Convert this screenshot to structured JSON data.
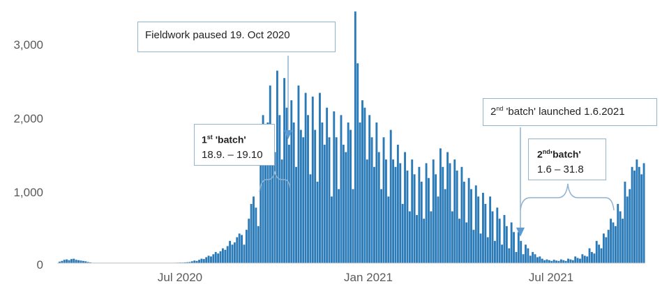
{
  "chart_data": {
    "type": "bar",
    "ylim": [
      0,
      3500
    ],
    "y_ticks": [
      {
        "value": 0,
        "label": "0"
      },
      {
        "value": 1000,
        "label": "1,000"
      },
      {
        "value": 2000,
        "label": "2,000"
      },
      {
        "value": 3000,
        "label": "3,000"
      }
    ],
    "x_ticks": [
      "Jul 2020",
      "Jan 2021",
      "Jul 2021"
    ],
    "bar_color": "#2a7ab8",
    "series": [
      {
        "values": [
          20,
          30,
          45,
          50,
          40,
          55,
          60,
          45,
          40,
          35,
          30,
          25,
          15,
          10,
          5,
          5,
          4,
          3,
          3,
          2,
          2,
          1,
          1,
          1,
          1,
          1,
          1,
          1,
          1,
          1,
          1,
          1,
          1,
          1,
          1,
          1,
          1,
          1,
          2,
          2,
          2,
          2,
          3,
          3,
          3,
          4,
          4,
          5,
          5,
          6,
          7,
          8,
          8,
          10,
          12,
          15,
          25,
          35,
          30,
          45,
          60,
          55,
          80,
          100,
          90,
          120,
          150,
          130,
          160,
          200,
          180,
          230,
          300,
          250,
          280,
          350,
          400,
          380,
          250,
          450,
          600,
          800,
          900,
          750,
          500,
          1500,
          2000,
          1700,
          1900,
          2400,
          1800,
          1500,
          2600,
          2000,
          1400,
          2500,
          2100,
          1600,
          2200,
          1900,
          1300,
          2400,
          1800,
          1700,
          2300,
          2000,
          1200,
          2250,
          1800,
          1100,
          2300,
          1900,
          1600,
          2100,
          1700,
          900,
          2050,
          1700,
          1000,
          2000,
          1600,
          1500,
          1900,
          1800,
          1000,
          3400,
          2700,
          1900,
          2200,
          2100,
          1400,
          2000,
          1700,
          1300,
          1900,
          1500,
          1000,
          1700,
          1400,
          900,
          1800,
          1400,
          1300,
          1600,
          1350,
          800,
          1500,
          1250,
          700,
          1400,
          1200,
          650,
          1300,
          1100,
          600,
          1350,
          1150,
          700,
          1400,
          1200,
          900,
          1550,
          1300,
          1000,
          1500,
          1350,
          700,
          1400,
          1250,
          600,
          1300,
          1100,
          550,
          1150,
          1000,
          450,
          1050,
          900,
          400,
          950,
          800,
          350,
          900,
          700,
          300,
          750,
          600,
          250,
          650,
          500,
          200,
          550,
          420,
          150,
          420,
          300,
          120,
          250,
          200,
          100,
          150,
          120,
          80,
          90,
          60,
          40,
          50,
          40,
          30,
          45,
          35,
          30,
          50,
          40,
          30,
          60,
          50,
          40,
          90,
          70,
          60,
          120,
          100,
          90,
          200,
          150,
          130,
          300,
          250,
          200,
          400,
          350,
          450,
          600,
          550,
          500,
          800,
          700,
          600,
          1100,
          900,
          1000,
          1300,
          1250,
          1400,
          1300,
          1200,
          1350
        ]
      }
    ]
  },
  "annotations": {
    "fieldwork_paused": "Fieldwork paused 19. Oct 2020",
    "batch1_title_pre": "1",
    "batch1_title_sup": "st",
    "batch1_title_post": " 'batch'",
    "batch1_dates": "18.9. – 19.10",
    "batch2_launch_pre": "2",
    "batch2_launch_sup": "nd",
    "batch2_launch_post": " 'batch' launched 1.6.2021",
    "batch2_title_pre": "2",
    "batch2_title_sup": "nd",
    "batch2_title_post": "'batch'",
    "batch2_dates": "1.6 – 31.8"
  },
  "colors": {
    "bars": "#2a7ab8",
    "annotation_line": "#8fb3d1",
    "arrow": "#5a9bd4",
    "axis": "#c8c8c8"
  }
}
